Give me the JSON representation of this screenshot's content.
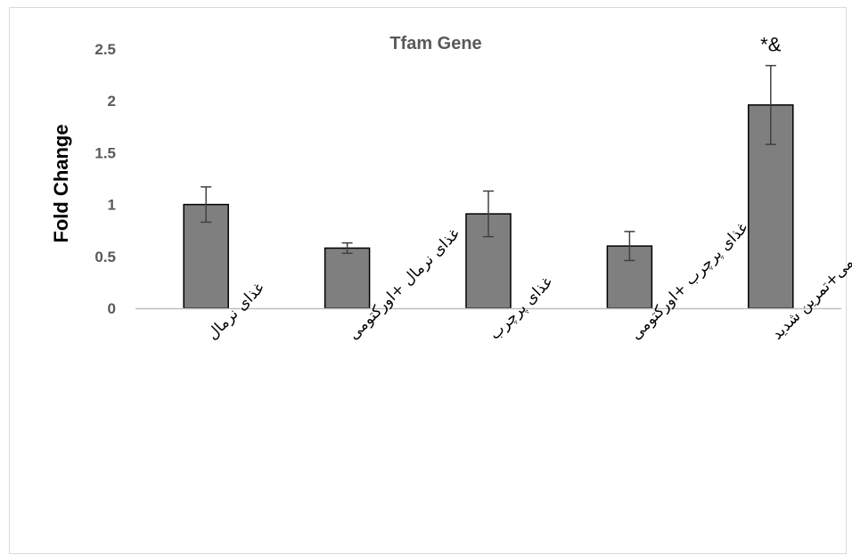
{
  "chart_data": {
    "type": "bar",
    "title": "Tfam  Gene",
    "ylabel": "Fold Change",
    "xlabel": "",
    "ylim": [
      0,
      2.5
    ],
    "yticks": [
      "0",
      "0.5",
      "1",
      "1.5",
      "2",
      "2.5"
    ],
    "grid": false,
    "categories": [
      "غذای نرمال",
      "غذای نرمال +اورکتومی",
      "غذای پرچرب",
      "غذای پرچرب +اورکتومی",
      "غذای پرچرب+اورکتومی+تمرین شدید"
    ],
    "values": [
      1.0,
      0.58,
      0.91,
      0.6,
      1.96
    ],
    "errors": [
      0.17,
      0.05,
      0.22,
      0.14,
      0.38
    ],
    "annotations": [
      {
        "category_index": 4,
        "text": "*&"
      }
    ],
    "colors": {
      "bar_fill": "#7f7f7f",
      "bar_stroke": "#000000",
      "error_bar": "#404040",
      "axis": "#bfbfbf"
    }
  }
}
